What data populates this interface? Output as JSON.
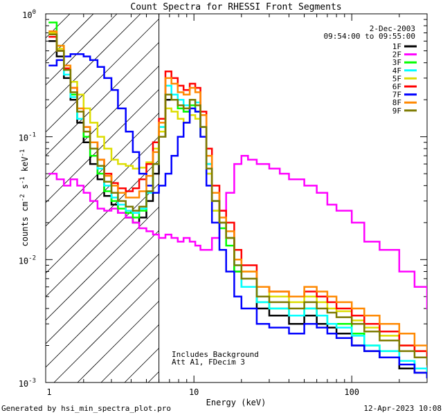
{
  "chart_data": {
    "type": "line",
    "title": "Count Spectra for RHESSI Front Segments",
    "xlabel": "Energy (keV)",
    "ylabel": "counts cm^-2 s^-1 keV^-1",
    "xscale": "log",
    "yscale": "log",
    "xlim": [
      1.15,
      300
    ],
    "ylim": [
      0.001,
      1
    ],
    "x_ticks": [
      {
        "value": 1,
        "label": "1"
      },
      {
        "value": 10,
        "label": "10"
      },
      {
        "value": 100,
        "label": "100"
      }
    ],
    "y_ticks": [
      {
        "value": 1,
        "label": "10",
        "exp": "0"
      },
      {
        "value": 0.1,
        "label": "10",
        "exp": "-1"
      },
      {
        "value": 0.01,
        "label": "10",
        "exp": "-2"
      },
      {
        "value": 0.001,
        "label": "10",
        "exp": "-3"
      }
    ],
    "attenuator_energy_keV": 6,
    "date": "2-Dec-2003",
    "time_range": "09:54:00 to 09:55:00",
    "annotations": [
      "Includes Background",
      "Att A1, FDecim 3"
    ],
    "series": [
      {
        "name": "1F",
        "color": "#000000",
        "x": [
          1.2,
          1.35,
          1.5,
          1.65,
          1.82,
          2.0,
          2.2,
          2.45,
          2.7,
          3.0,
          3.3,
          3.7,
          4.1,
          4.5,
          5.0,
          5.5,
          6.0,
          6.6,
          7.2,
          7.9,
          8.6,
          9.4,
          10.2,
          11.0,
          12.0,
          13.0,
          14.5,
          16.0,
          18.0,
          20.0,
          25.0,
          30.0,
          40.0,
          50.0,
          60.0,
          70.0,
          80.0,
          100.0,
          120.0,
          150.0,
          200.0,
          250.0,
          300.0
        ],
        "y": [
          0.6,
          0.45,
          0.3,
          0.2,
          0.13,
          0.09,
          0.06,
          0.045,
          0.033,
          0.028,
          0.024,
          0.022,
          0.02,
          0.022,
          0.03,
          0.05,
          0.1,
          0.2,
          0.2,
          0.18,
          0.16,
          0.18,
          0.18,
          0.12,
          0.06,
          0.03,
          0.02,
          0.015,
          0.008,
          0.006,
          0.004,
          0.0035,
          0.003,
          0.0035,
          0.003,
          0.0028,
          0.0025,
          0.002,
          0.0018,
          0.0016,
          0.0013,
          0.0012,
          0.0011
        ]
      },
      {
        "name": "2F",
        "color": "#ff00ff",
        "x": [
          1.2,
          1.35,
          1.5,
          1.65,
          1.82,
          2.0,
          2.2,
          2.45,
          2.7,
          3.0,
          3.3,
          3.7,
          4.1,
          4.5,
          5.0,
          5.5,
          6.0,
          6.6,
          7.2,
          7.9,
          8.6,
          9.4,
          10.2,
          11.0,
          12.0,
          13.0,
          14.5,
          16.0,
          18.0,
          20.0,
          22.0,
          25.0,
          30.0,
          35.0,
          40.0,
          50.0,
          60.0,
          70.0,
          80.0,
          100.0,
          120.0,
          150.0,
          200.0,
          250.0,
          300.0
        ],
        "y": [
          0.05,
          0.045,
          0.04,
          0.045,
          0.04,
          0.035,
          0.03,
          0.026,
          0.025,
          0.026,
          0.024,
          0.022,
          0.02,
          0.018,
          0.017,
          0.016,
          0.015,
          0.016,
          0.015,
          0.014,
          0.015,
          0.014,
          0.013,
          0.012,
          0.012,
          0.015,
          0.025,
          0.035,
          0.06,
          0.07,
          0.065,
          0.06,
          0.055,
          0.05,
          0.045,
          0.04,
          0.035,
          0.028,
          0.025,
          0.02,
          0.014,
          0.012,
          0.008,
          0.006,
          0.004
        ]
      },
      {
        "name": "3F",
        "color": "#00ff00",
        "x": [
          1.2,
          1.35,
          1.5,
          1.65,
          1.82,
          2.0,
          2.2,
          2.45,
          2.7,
          3.0,
          3.3,
          3.7,
          4.1,
          4.5,
          5.0,
          5.5,
          6.0,
          6.6,
          7.2,
          7.9,
          8.6,
          9.4,
          10.2,
          11.0,
          12.0,
          13.0,
          14.5,
          16.0,
          18.0,
          20.0,
          25.0,
          30.0,
          40.0,
          50.0,
          60.0,
          70.0,
          80.0,
          100.0,
          120.0,
          150.0,
          200.0,
          250.0,
          300.0
        ],
        "y": [
          0.85,
          0.55,
          0.35,
          0.22,
          0.14,
          0.1,
          0.07,
          0.05,
          0.036,
          0.03,
          0.026,
          0.024,
          0.022,
          0.025,
          0.035,
          0.06,
          0.12,
          0.22,
          0.2,
          0.17,
          0.16,
          0.18,
          0.16,
          0.1,
          0.05,
          0.025,
          0.018,
          0.013,
          0.008,
          0.006,
          0.0045,
          0.004,
          0.0035,
          0.004,
          0.0035,
          0.003,
          0.003,
          0.0025,
          0.002,
          0.0018,
          0.0015,
          0.0013,
          0.0012
        ]
      },
      {
        "name": "4F",
        "color": "#00ffff",
        "x": [
          1.2,
          1.35,
          1.5,
          1.65,
          1.82,
          2.0,
          2.2,
          2.45,
          2.7,
          3.0,
          3.3,
          3.7,
          4.1,
          4.5,
          5.0,
          5.5,
          6.0,
          6.6,
          7.2,
          7.9,
          8.6,
          9.4,
          10.2,
          11.0,
          12.0,
          13.0,
          14.5,
          16.0,
          18.0,
          20.0,
          25.0,
          30.0,
          40.0,
          50.0,
          60.0,
          70.0,
          80.0,
          100.0,
          120.0,
          150.0,
          200.0,
          250.0,
          300.0
        ],
        "y": [
          0.7,
          0.5,
          0.32,
          0.21,
          0.14,
          0.11,
          0.08,
          0.055,
          0.04,
          0.032,
          0.028,
          0.025,
          0.024,
          0.026,
          0.035,
          0.06,
          0.12,
          0.26,
          0.22,
          0.2,
          0.18,
          0.2,
          0.19,
          0.12,
          0.06,
          0.03,
          0.02,
          0.015,
          0.009,
          0.006,
          0.0045,
          0.004,
          0.0035,
          0.004,
          0.0035,
          0.003,
          0.0028,
          0.0024,
          0.002,
          0.0018,
          0.0015,
          0.0013,
          0.0012
        ]
      },
      {
        "name": "5F",
        "color": "#dddd00",
        "x": [
          1.2,
          1.35,
          1.5,
          1.65,
          1.82,
          2.0,
          2.2,
          2.45,
          2.7,
          3.0,
          3.3,
          3.7,
          4.1,
          4.5,
          5.0,
          5.5,
          6.0,
          6.6,
          7.2,
          7.9,
          8.6,
          9.4,
          10.2,
          11.0,
          12.0,
          13.0,
          14.5,
          16.0,
          18.0,
          20.0,
          25.0,
          30.0,
          40.0,
          50.0,
          60.0,
          70.0,
          80.0,
          100.0,
          120.0,
          150.0,
          200.0,
          250.0,
          300.0
        ],
        "y": [
          0.7,
          0.52,
          0.38,
          0.28,
          0.22,
          0.17,
          0.13,
          0.1,
          0.08,
          0.065,
          0.06,
          0.058,
          0.055,
          0.056,
          0.062,
          0.08,
          0.11,
          0.17,
          0.16,
          0.14,
          0.13,
          0.15,
          0.14,
          0.1,
          0.05,
          0.025,
          0.02,
          0.015,
          0.01,
          0.008,
          0.006,
          0.005,
          0.0045,
          0.005,
          0.0045,
          0.004,
          0.0038,
          0.0032,
          0.0028,
          0.0024,
          0.002,
          0.0018,
          0.0016
        ]
      },
      {
        "name": "6F",
        "color": "#ff0000",
        "x": [
          1.2,
          1.35,
          1.5,
          1.65,
          1.82,
          2.0,
          2.2,
          2.45,
          2.7,
          3.0,
          3.3,
          3.7,
          4.1,
          4.5,
          5.0,
          5.5,
          6.0,
          6.6,
          7.2,
          7.9,
          8.6,
          9.4,
          10.2,
          11.0,
          12.0,
          13.0,
          14.5,
          16.0,
          18.0,
          20.0,
          25.0,
          30.0,
          40.0,
          50.0,
          60.0,
          70.0,
          80.0,
          100.0,
          120.0,
          150.0,
          200.0,
          250.0,
          300.0
        ],
        "y": [
          0.65,
          0.5,
          0.36,
          0.25,
          0.17,
          0.12,
          0.09,
          0.065,
          0.05,
          0.042,
          0.038,
          0.036,
          0.038,
          0.045,
          0.06,
          0.09,
          0.14,
          0.34,
          0.3,
          0.26,
          0.24,
          0.27,
          0.25,
          0.16,
          0.08,
          0.04,
          0.025,
          0.02,
          0.012,
          0.009,
          0.006,
          0.0055,
          0.005,
          0.0055,
          0.005,
          0.0045,
          0.004,
          0.0035,
          0.003,
          0.0026,
          0.002,
          0.0018,
          0.0016
        ]
      },
      {
        "name": "7F",
        "color": "#0000ff",
        "x": [
          1.2,
          1.35,
          1.5,
          1.65,
          1.82,
          2.0,
          2.2,
          2.45,
          2.7,
          3.0,
          3.3,
          3.7,
          4.1,
          4.5,
          5.0,
          5.5,
          6.0,
          6.6,
          7.2,
          7.9,
          8.6,
          9.4,
          10.2,
          11.0,
          12.0,
          13.0,
          14.5,
          16.0,
          18.0,
          20.0,
          25.0,
          30.0,
          40.0,
          50.0,
          60.0,
          70.0,
          80.0,
          100.0,
          120.0,
          150.0,
          200.0,
          250.0,
          300.0
        ],
        "y": [
          0.38,
          0.42,
          0.45,
          0.47,
          0.47,
          0.45,
          0.42,
          0.37,
          0.3,
          0.24,
          0.17,
          0.11,
          0.075,
          0.05,
          0.04,
          0.035,
          0.04,
          0.05,
          0.07,
          0.1,
          0.13,
          0.17,
          0.16,
          0.1,
          0.04,
          0.02,
          0.012,
          0.008,
          0.005,
          0.004,
          0.003,
          0.0028,
          0.0025,
          0.003,
          0.0028,
          0.0025,
          0.0023,
          0.002,
          0.0018,
          0.0016,
          0.0014,
          0.0012,
          0.0011
        ]
      },
      {
        "name": "8F",
        "color": "#ff8800",
        "x": [
          1.2,
          1.35,
          1.5,
          1.65,
          1.82,
          2.0,
          2.2,
          2.45,
          2.7,
          3.0,
          3.3,
          3.7,
          4.1,
          4.5,
          5.0,
          5.5,
          6.0,
          6.6,
          7.2,
          7.9,
          8.6,
          9.4,
          10.2,
          11.0,
          12.0,
          13.0,
          14.5,
          16.0,
          18.0,
          20.0,
          25.0,
          30.0,
          40.0,
          50.0,
          60.0,
          70.0,
          80.0,
          100.0,
          120.0,
          150.0,
          200.0,
          250.0,
          300.0
        ],
        "y": [
          0.72,
          0.55,
          0.38,
          0.25,
          0.17,
          0.12,
          0.09,
          0.065,
          0.048,
          0.04,
          0.035,
          0.032,
          0.032,
          0.036,
          0.048,
          0.075,
          0.13,
          0.3,
          0.27,
          0.23,
          0.22,
          0.25,
          0.23,
          0.15,
          0.07,
          0.035,
          0.022,
          0.017,
          0.01,
          0.008,
          0.006,
          0.0055,
          0.005,
          0.006,
          0.0055,
          0.005,
          0.0045,
          0.004,
          0.0035,
          0.003,
          0.0025,
          0.002,
          0.0018
        ]
      },
      {
        "name": "9F",
        "color": "#7d7a00",
        "x": [
          1.2,
          1.35,
          1.5,
          1.65,
          1.82,
          2.0,
          2.2,
          2.45,
          2.7,
          3.0,
          3.3,
          3.7,
          4.1,
          4.5,
          5.0,
          5.5,
          6.0,
          6.6,
          7.2,
          7.9,
          8.6,
          9.4,
          10.2,
          11.0,
          12.0,
          13.0,
          14.5,
          16.0,
          18.0,
          20.0,
          25.0,
          30.0,
          40.0,
          50.0,
          60.0,
          70.0,
          80.0,
          100.0,
          120.0,
          150.0,
          200.0,
          250.0,
          300.0
        ],
        "y": [
          0.68,
          0.5,
          0.35,
          0.23,
          0.16,
          0.11,
          0.08,
          0.058,
          0.043,
          0.035,
          0.03,
          0.027,
          0.025,
          0.027,
          0.036,
          0.06,
          0.1,
          0.22,
          0.2,
          0.18,
          0.17,
          0.2,
          0.18,
          0.12,
          0.055,
          0.03,
          0.02,
          0.015,
          0.009,
          0.007,
          0.005,
          0.0045,
          0.004,
          0.0045,
          0.004,
          0.0037,
          0.0034,
          0.003,
          0.0026,
          0.0022,
          0.0018,
          0.0016,
          0.0014
        ]
      }
    ]
  },
  "footer": {
    "generated_by": "Generated by hsi_min_spectra_plot.pro",
    "timestamp": "12-Apr-2023 10:08"
  }
}
